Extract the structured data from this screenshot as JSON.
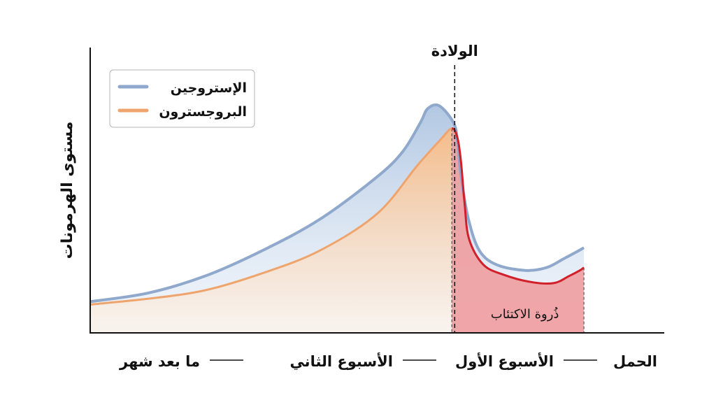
{
  "chart_data": {
    "type": "area",
    "ylabel": "مستوى الهرمونات",
    "xlabel": "",
    "x_range": [
      0,
      100
    ],
    "ylim": [
      0,
      100
    ],
    "grid": false,
    "legend_position": "top-left",
    "legend": [
      {
        "label": "الإستروجين",
        "color": "#8fa8cc"
      },
      {
        "label": "البروجسترون",
        "color": "#eea46c"
      }
    ],
    "series": [
      {
        "name": "الإستروجين",
        "color": "#8fa8cc",
        "points": [
          [
            0,
            11
          ],
          [
            10,
            14
          ],
          [
            20,
            20
          ],
          [
            30,
            29
          ],
          [
            40,
            40
          ],
          [
            50,
            55
          ],
          [
            54.5,
            64
          ],
          [
            57.5,
            74
          ],
          [
            58.8,
            79
          ],
          [
            60.8,
            80
          ],
          [
            63.3,
            74
          ],
          [
            64,
            67
          ],
          [
            64.6,
            55
          ],
          [
            65.9,
            40
          ],
          [
            67.8,
            29
          ],
          [
            70.8,
            24
          ],
          [
            75.8,
            22
          ],
          [
            79.5,
            23
          ],
          [
            82.4,
            26
          ],
          [
            84.7,
            28.5
          ],
          [
            86,
            30
          ]
        ]
      },
      {
        "name": "البروجسترون",
        "color": "#eea46c",
        "points": [
          [
            0,
            10
          ],
          [
            10,
            12
          ],
          [
            20,
            15
          ],
          [
            30,
            21
          ],
          [
            40,
            29
          ],
          [
            50,
            42
          ],
          [
            57,
            59
          ],
          [
            61,
            68
          ],
          [
            63,
            72
          ],
          [
            64,
            68.5
          ],
          [
            64.6,
            60
          ],
          [
            65.2,
            46
          ],
          [
            66,
            33
          ],
          [
            68.5,
            24
          ],
          [
            72,
            20.5
          ],
          [
            76.5,
            18
          ],
          [
            80.7,
            17.5
          ],
          [
            83.4,
            20
          ],
          [
            85.3,
            22
          ],
          [
            86,
            23
          ]
        ]
      }
    ],
    "x_axis_labels": [
      "الحمل",
      "الأسبوع الأول",
      "الأسبوع الثاني",
      "ما بعد شهر"
    ],
    "annotations": [
      {
        "label": "الولادة",
        "x": 63.5
      },
      {
        "label": "ذُروة الاكتئاب",
        "x_start": 63,
        "x_end": 86
      }
    ]
  }
}
